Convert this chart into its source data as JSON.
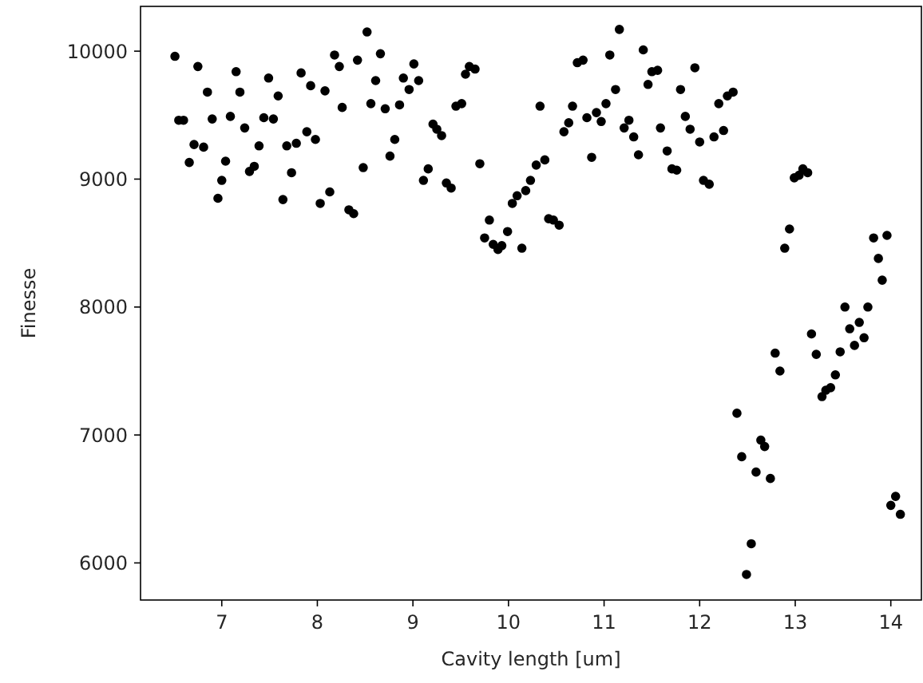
{
  "chart_data": {
    "type": "scatter",
    "xlabel": "Cavity length [um]",
    "ylabel": "Finesse",
    "xlim": [
      6.15,
      14.32
    ],
    "ylim": [
      5710,
      10350
    ],
    "xticks": [
      7,
      8,
      9,
      10,
      11,
      12,
      13,
      14
    ],
    "yticks": [
      6000,
      7000,
      8000,
      9000,
      10000
    ],
    "marker": "circle",
    "series": [
      {
        "color": "#000000",
        "x": [
          6.51,
          6.75,
          7.15,
          7.49,
          7.83,
          8.18,
          8.23,
          8.42,
          8.52,
          8.66,
          8.61,
          8.9,
          6.85,
          7.19,
          7.59,
          7.93,
          8.08,
          8.26,
          8.56,
          8.71,
          8.86,
          6.55,
          6.6,
          6.9,
          7.09,
          7.24,
          7.44,
          7.54,
          6.71,
          6.81,
          6.66,
          7.04,
          7.39,
          7.0,
          6.96,
          7.29,
          7.34,
          7.68,
          7.78,
          7.89,
          7.98,
          7.73,
          7.64,
          8.03,
          8.13,
          8.33,
          8.38,
          8.48,
          8.76,
          8.81,
          9.01,
          9.06,
          8.96,
          9.59,
          9.65,
          9.55,
          9.45,
          9.51,
          9.21,
          9.25,
          9.3,
          9.16,
          9.11,
          9.35,
          9.4,
          9.7,
          9.8,
          9.75,
          9.84,
          9.89,
          9.93,
          9.99,
          10.14,
          10.04,
          10.09,
          10.18,
          10.23,
          10.29,
          10.38,
          10.33,
          10.42,
          10.47,
          10.53,
          10.58,
          10.63,
          10.67,
          10.72,
          10.78,
          10.82,
          10.92,
          10.97,
          11.02,
          10.87,
          11.06,
          11.12,
          11.16,
          11.41,
          11.46,
          11.5,
          11.56,
          11.21,
          11.26,
          11.31,
          11.36,
          11.59,
          11.95,
          11.8,
          12.2,
          12.29,
          12.35,
          11.85,
          11.9,
          12.0,
          12.15,
          12.25,
          11.66,
          11.71,
          11.76,
          12.04,
          12.1,
          12.99,
          13.04,
          13.08,
          13.13,
          12.94,
          12.89,
          13.82,
          13.96,
          13.87,
          13.91,
          13.52,
          13.76,
          13.67,
          13.17,
          13.57,
          13.72,
          13.62,
          13.47,
          12.79,
          13.22,
          12.84,
          13.42,
          13.28,
          13.32,
          13.37,
          12.39,
          12.64,
          12.68,
          12.44,
          12.59,
          12.74,
          14.05,
          14.0,
          14.1,
          12.54,
          12.49
        ],
        "values": [
          9960,
          9880,
          9840,
          9790,
          9830,
          9970,
          9880,
          9930,
          10150,
          9980,
          9770,
          9790,
          9680,
          9680,
          9650,
          9730,
          9690,
          9560,
          9590,
          9550,
          9580,
          9460,
          9460,
          9470,
          9490,
          9400,
          9480,
          9470,
          9270,
          9250,
          9130,
          9140,
          9260,
          8990,
          8850,
          9060,
          9100,
          9260,
          9280,
          9370,
          9310,
          9050,
          8840,
          8810,
          8900,
          8760,
          8730,
          9090,
          9180,
          9310,
          9900,
          9770,
          9700,
          9880,
          9860,
          9820,
          9570,
          9590,
          9430,
          9390,
          9340,
          9080,
          8990,
          8970,
          8930,
          9120,
          8680,
          8540,
          8490,
          8450,
          8480,
          8590,
          8460,
          8810,
          8870,
          8910,
          8990,
          9110,
          9150,
          9570,
          8690,
          8680,
          8640,
          9370,
          9440,
          9570,
          9910,
          9930,
          9480,
          9520,
          9450,
          9590,
          9170,
          9970,
          9700,
          10170,
          10010,
          9740,
          9840,
          9850,
          9400,
          9460,
          9330,
          9190,
          9400,
          9870,
          9700,
          9590,
          9650,
          9680,
          9490,
          9390,
          9290,
          9330,
          9380,
          9220,
          9080,
          9070,
          8990,
          8960,
          9010,
          9030,
          9080,
          9050,
          8610,
          8460,
          8540,
          8560,
          8380,
          8210,
          8000,
          8000,
          7880,
          7790,
          7830,
          7760,
          7700,
          7650,
          7640,
          7630,
          7500,
          7470,
          7300,
          7350,
          7370,
          7170,
          6960,
          6910,
          6830,
          6710,
          6660,
          6520,
          6450,
          6380,
          6150,
          5910
        ]
      }
    ]
  }
}
